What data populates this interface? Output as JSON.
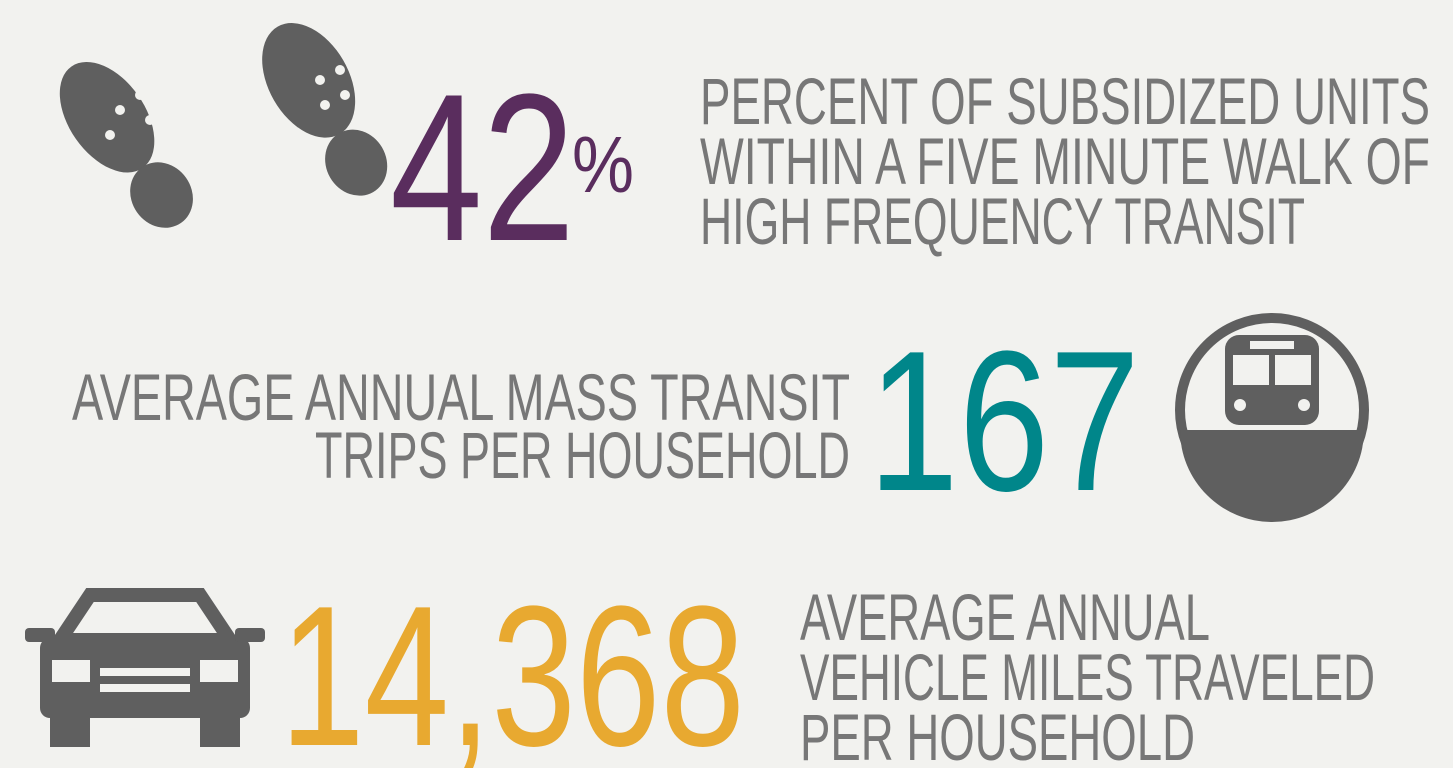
{
  "stats": [
    {
      "number": "42",
      "unit": "%",
      "lines": [
        "PERCENT OF SUBSIDIZED UNITS",
        "WITHIN A FIVE MINUTE WALK OF",
        "HIGH FREQUENCY TRANSIT"
      ]
    },
    {
      "number": "167",
      "lines": [
        "AVERAGE ANNUAL MASS TRANSIT",
        "TRIPS PER HOUSEHOLD"
      ]
    },
    {
      "number": "14,368",
      "lines": [
        "AVERAGE ANNUAL",
        "VEHICLE MILES TRAVELED",
        "PER HOUSEHOLD"
      ]
    }
  ]
}
